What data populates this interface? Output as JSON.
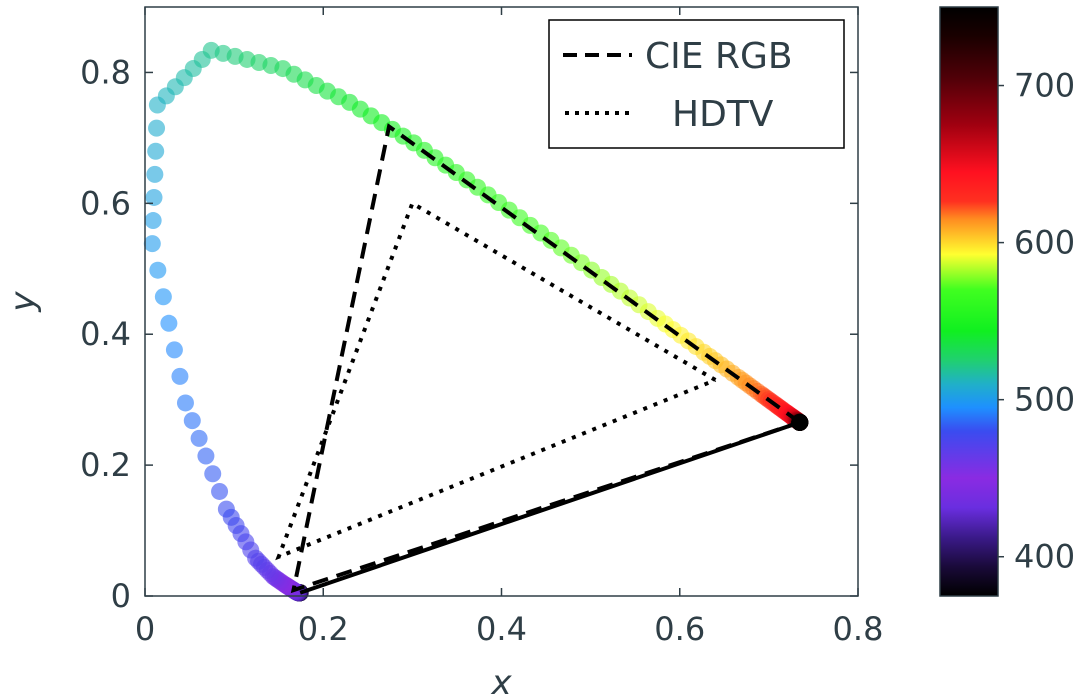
{
  "chart_data": {
    "type": "scatter",
    "title": "",
    "xlabel": "x",
    "ylabel": "y",
    "xlim": [
      0,
      0.8
    ],
    "ylim": [
      0,
      0.9
    ],
    "xticks": [
      "0",
      "0.2",
      "0.4",
      "0.6",
      "0.8"
    ],
    "yticks": [
      "0",
      "0.2",
      "0.4",
      "0.6",
      "0.8"
    ],
    "grid": false,
    "legend_placement": "top-right",
    "series": [
      {
        "name": "CIE RGB",
        "style": "dashed",
        "color": "#000000",
        "points": [
          [
            0.7347,
            0.2653
          ],
          [
            0.2738,
            0.7174
          ],
          [
            0.1666,
            0.0089
          ],
          [
            0.7347,
            0.2653
          ]
        ]
      },
      {
        "name": "HDTV",
        "style": "dotted",
        "color": "#000000",
        "points": [
          [
            0.64,
            0.33
          ],
          [
            0.3,
            0.6
          ],
          [
            0.15,
            0.06
          ],
          [
            0.64,
            0.33
          ]
        ]
      }
    ],
    "purple_line": {
      "style": "solid",
      "color": "#000000",
      "points": [
        [
          0.1741,
          0.005
        ],
        [
          0.7347,
          0.2653
        ]
      ]
    },
    "spectral_locus": {
      "wavelength_nm": [
        380,
        390,
        400,
        410,
        420,
        430,
        440,
        450,
        460,
        470,
        480,
        490,
        500,
        510,
        520,
        530,
        540,
        550,
        560,
        570,
        580,
        590,
        600,
        610,
        620,
        630,
        640,
        650,
        660,
        670,
        680,
        690,
        700,
        710,
        720,
        730,
        740
      ],
      "x": [
        0.1741,
        0.1738,
        0.1733,
        0.1726,
        0.1714,
        0.1689,
        0.1644,
        0.1566,
        0.144,
        0.1241,
        0.0913,
        0.0454,
        0.0082,
        0.0139,
        0.0743,
        0.1547,
        0.2296,
        0.3016,
        0.3731,
        0.4441,
        0.5125,
        0.5752,
        0.627,
        0.6658,
        0.6915,
        0.7079,
        0.719,
        0.726,
        0.73,
        0.732,
        0.7334,
        0.7344,
        0.7347,
        0.7347,
        0.7347,
        0.7347,
        0.7347
      ],
      "y": [
        0.005,
        0.0049,
        0.0048,
        0.0048,
        0.0051,
        0.0069,
        0.0109,
        0.0177,
        0.0297,
        0.0578,
        0.1327,
        0.295,
        0.5384,
        0.7502,
        0.8338,
        0.8059,
        0.7543,
        0.6923,
        0.6245,
        0.5547,
        0.4866,
        0.4242,
        0.3725,
        0.334,
        0.3083,
        0.292,
        0.2809,
        0.274,
        0.27,
        0.268,
        0.2666,
        0.2656,
        0.2653,
        0.2653,
        0.2653,
        0.2653,
        0.2653
      ]
    },
    "colorbar": {
      "range": [
        375,
        750
      ],
      "ticks": [
        "400",
        "500",
        "600",
        "700"
      ],
      "tick_values": [
        400,
        500,
        600,
        700
      ],
      "colors": [
        [
          0.0,
          "#000000"
        ],
        [
          0.05,
          "#1a0a3a"
        ],
        [
          0.1,
          "#3b1a8a"
        ],
        [
          0.15,
          "#6a2ee0"
        ],
        [
          0.2,
          "#8a2be2"
        ],
        [
          0.28,
          "#3a4cf0"
        ],
        [
          0.32,
          "#1e90ff"
        ],
        [
          0.36,
          "#20b0c8"
        ],
        [
          0.4,
          "#20d070"
        ],
        [
          0.45,
          "#10f020"
        ],
        [
          0.52,
          "#40ff20"
        ],
        [
          0.58,
          "#ffff30"
        ],
        [
          0.64,
          "#ff8c20"
        ],
        [
          0.67,
          "#ff3020"
        ],
        [
          0.72,
          "#ff1020"
        ],
        [
          0.8,
          "#a00010"
        ],
        [
          0.88,
          "#500008"
        ],
        [
          0.95,
          "#1a0000"
        ],
        [
          1.0,
          "#000000"
        ]
      ]
    }
  }
}
